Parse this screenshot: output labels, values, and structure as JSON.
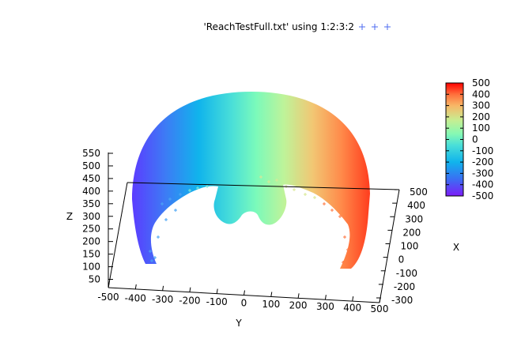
{
  "chart_data": {
    "type": "scatter",
    "title": "",
    "legend": {
      "label": "'ReachTestFull.txt' using 1:2:3:2",
      "marker": "+",
      "marker_color": "#4d6bf0",
      "placement": "top-center"
    },
    "xlabel": "X",
    "ylabel": "Y",
    "zlabel": "Z",
    "x_ticks": [
      "500",
      "400",
      "300",
      "200",
      "100",
      "0",
      "-100",
      "-200",
      "-300"
    ],
    "y_ticks": [
      "-500",
      "-400",
      "-300",
      "-200",
      "-100",
      "0",
      "100",
      "200",
      "300",
      "400",
      "500"
    ],
    "z_ticks": [
      "550",
      "500",
      "450",
      "400",
      "350",
      "300",
      "250",
      "200",
      "150",
      "100",
      "50"
    ],
    "colorbar": {
      "min": -500,
      "max": 500,
      "ticks": [
        "500",
        "400",
        "300",
        "200",
        "100",
        "0",
        "-100",
        "-200",
        "-300",
        "-400",
        "-500"
      ],
      "palette": "rainbow"
    },
    "surface": {
      "description_values": {
        "y_range": [
          -500,
          500
        ],
        "z_range": [
          50,
          550
        ],
        "color_by": "Y"
      }
    }
  }
}
